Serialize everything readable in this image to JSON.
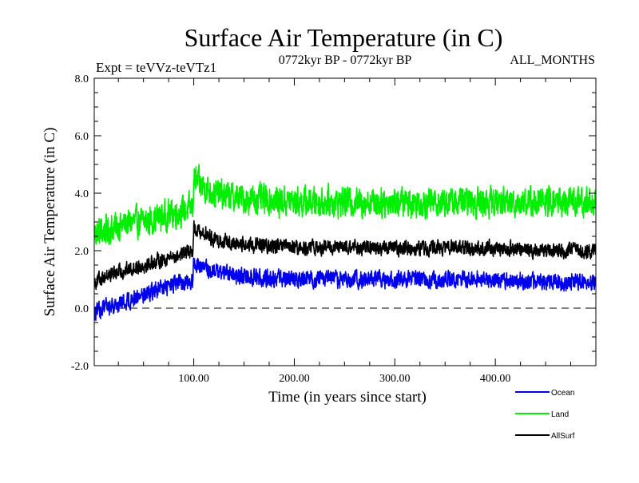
{
  "chart_data": {
    "type": "line",
    "title": "Surface Air Temperature (in C)",
    "subtitle_left": "Expt = teVVz-teVTz1",
    "subtitle_center": "0772kyr BP - 0772kyr BP",
    "subtitle_right": "ALL_MONTHS",
    "xlabel": "Time (in years since start)",
    "ylabel": "Surface Air Temperature (in C)",
    "xlim": [
      1,
      500
    ],
    "ylim": [
      -2.0,
      8.0
    ],
    "x_ticks": [
      100,
      200,
      300,
      400
    ],
    "x_tick_labels": [
      "100.00",
      "200.00",
      "300.00",
      "400.00"
    ],
    "y_ticks": [
      -2,
      0,
      2,
      4,
      6,
      8
    ],
    "y_tick_labels": [
      "-2.0",
      "0.0",
      "2.0",
      "4.0",
      "6.0",
      "8.0"
    ],
    "reference_line": {
      "y": 0.0,
      "style": "dashed",
      "color": "#000000"
    },
    "series": [
      {
        "name": "Land",
        "color": "#00ee00",
        "x": [
          1,
          10,
          20,
          30,
          40,
          50,
          60,
          70,
          80,
          90,
          99,
          100,
          110,
          120,
          150,
          200,
          250,
          300,
          350,
          400,
          450,
          500
        ],
        "values": [
          2.6,
          2.7,
          2.8,
          2.9,
          3.0,
          3.0,
          3.1,
          3.2,
          3.3,
          3.4,
          3.5,
          4.5,
          4.2,
          4.0,
          3.8,
          3.7,
          3.7,
          3.7,
          3.7,
          3.7,
          3.7,
          3.7
        ],
        "noise_amplitude": 0.7
      },
      {
        "name": "AllSurf",
        "color": "#000000",
        "x": [
          1,
          10,
          20,
          30,
          40,
          50,
          60,
          70,
          80,
          90,
          99,
          100,
          110,
          120,
          150,
          200,
          250,
          300,
          350,
          400,
          450,
          500
        ],
        "values": [
          0.9,
          1.1,
          1.2,
          1.3,
          1.4,
          1.5,
          1.6,
          1.7,
          1.8,
          1.9,
          2.0,
          2.8,
          2.6,
          2.4,
          2.2,
          2.1,
          2.1,
          2.1,
          2.1,
          2.1,
          2.0,
          2.0
        ],
        "noise_amplitude": 0.35
      },
      {
        "name": "Ocean",
        "color": "#0000ee",
        "x": [
          1,
          10,
          20,
          30,
          40,
          50,
          60,
          70,
          80,
          90,
          99,
          100,
          110,
          120,
          150,
          200,
          250,
          300,
          350,
          400,
          450,
          500
        ],
        "values": [
          -0.2,
          0.0,
          0.1,
          0.2,
          0.35,
          0.5,
          0.6,
          0.7,
          0.8,
          0.9,
          1.0,
          1.6,
          1.4,
          1.3,
          1.1,
          1.0,
          1.0,
          1.0,
          1.0,
          1.0,
          0.9,
          0.9
        ],
        "noise_amplitude": 0.4
      }
    ],
    "legend": {
      "placement": "bottom-right",
      "entries": [
        {
          "name": "Ocean",
          "color": "#0000ee"
        },
        {
          "name": "Land",
          "color": "#00ee00"
        },
        {
          "name": "AllSurf",
          "color": "#000000"
        }
      ]
    },
    "grid": false
  }
}
